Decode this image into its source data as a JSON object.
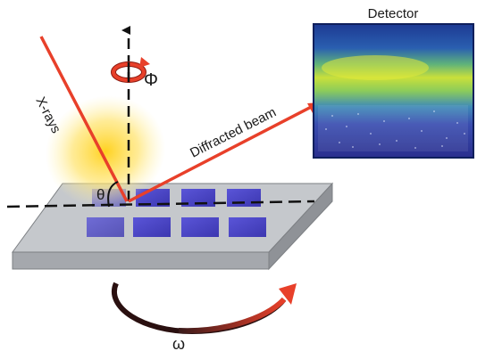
{
  "labels": {
    "detector": "Detector",
    "xrays": "X-rays",
    "diffracted_beam": "Diffracted beam",
    "phi": "Φ",
    "theta": "θ",
    "omega": "ω"
  },
  "colors": {
    "beam": "#e8402a",
    "sample_well": "#4a44c8",
    "plate_top": "#c4c7cb",
    "detector_bg": "#1f3f9a",
    "detector_band": "#c8e03a"
  }
}
